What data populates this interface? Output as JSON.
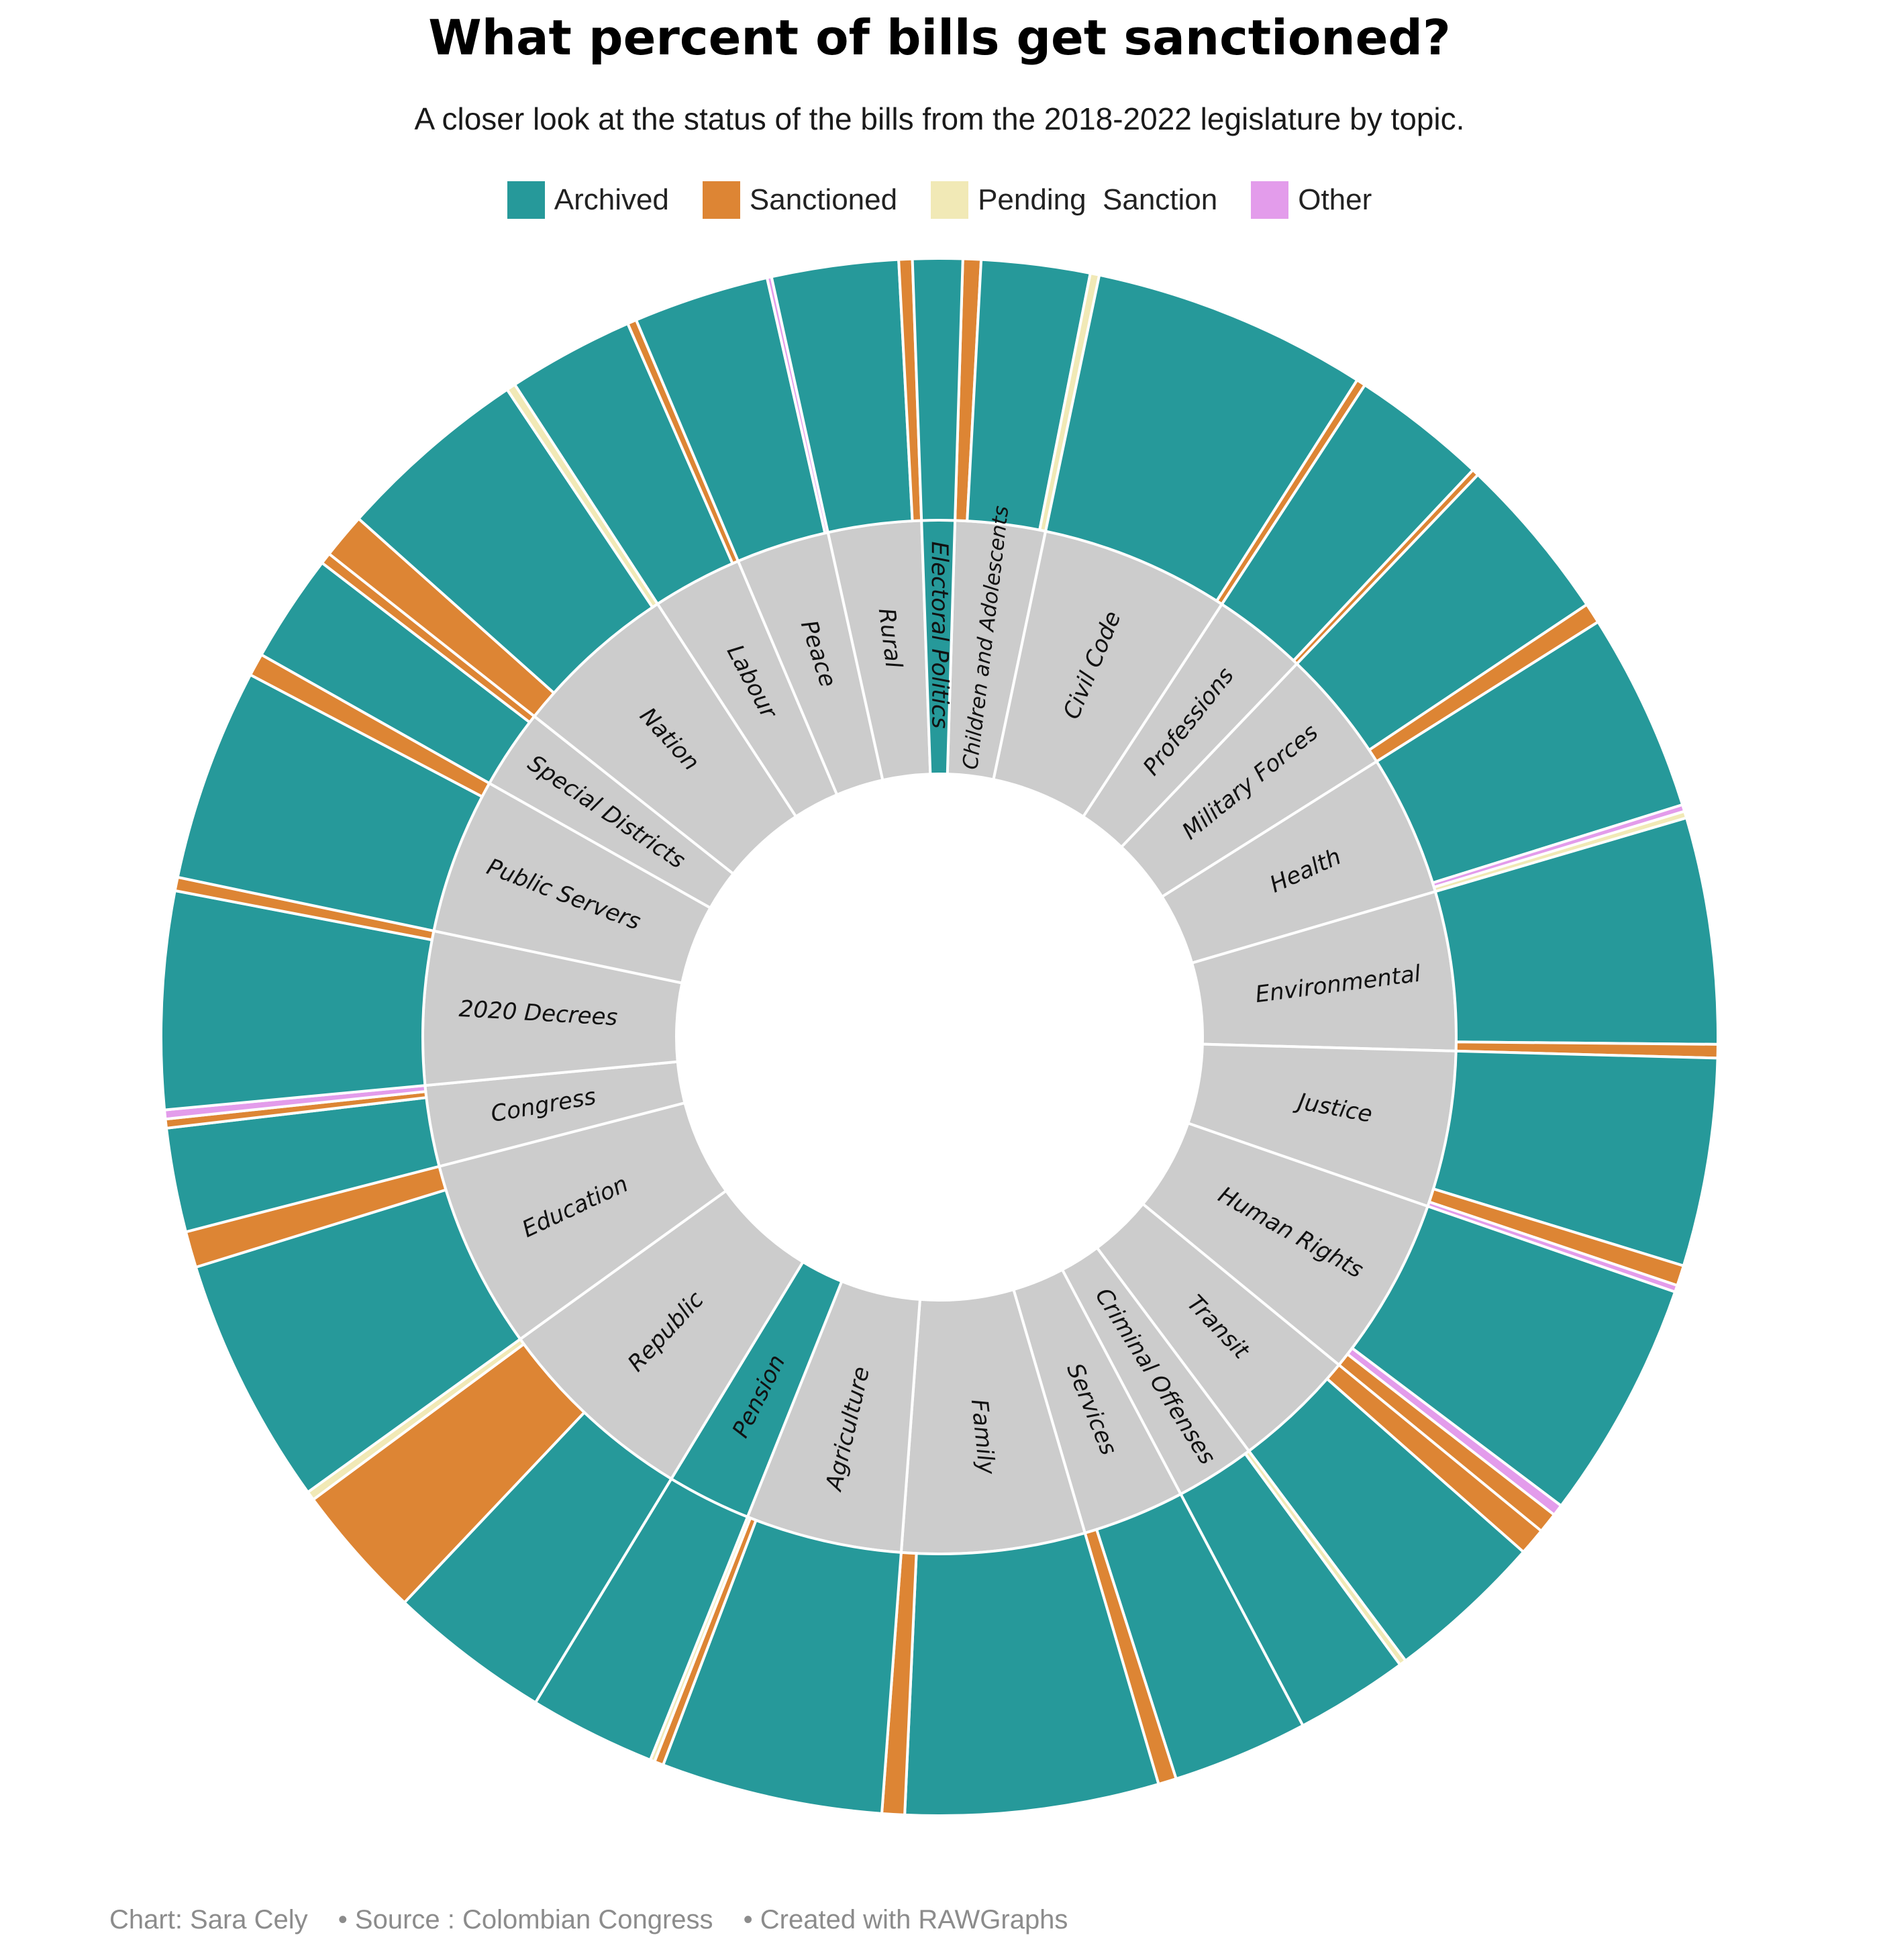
{
  "title": "What percent of bills get sanctioned?",
  "subtitle": "A closer look at the status of the bills from the 2018-2022 legislature by topic.",
  "legend": [
    {
      "label": "Archived",
      "color": "#26999a"
    },
    {
      "label": "Sanctioned",
      "color": "#dd8534"
    },
    {
      "label": "Pending  Sanction",
      "color": "#f1e9b6"
    },
    {
      "label": "Other",
      "color": "#e39ceb"
    }
  ],
  "footer": {
    "author": "Chart:  Sara Cely",
    "source": "• Source : Colombian Congress",
    "tool": "• Created with RAWGraphs"
  },
  "chart_data": {
    "type": "sunburst",
    "unit": "share of bills (%)",
    "status_colors": {
      "Archived": "#26999a",
      "Sanctioned": "#dd8534",
      "Pending Sanction": "#f1e9b6",
      "Other": "#e39ceb",
      "Topic": "#cccccc"
    },
    "topics": [
      {
        "name": "Children and Adolescents",
        "statuses": [
          {
            "status": "Sanctioned",
            "value": 0.4
          },
          {
            "status": "Archived",
            "value": 2.4
          },
          {
            "status": "Pending Sanction",
            "value": 0.2
          }
        ]
      },
      {
        "name": "Civil Code",
        "statuses": [
          {
            "status": "Archived",
            "value": 6.1
          },
          {
            "status": "Sanctioned",
            "value": 0.2
          }
        ]
      },
      {
        "name": "Professions",
        "statuses": [
          {
            "status": "Archived",
            "value": 3.0
          },
          {
            "status": "Sanctioned",
            "value": 0.15
          }
        ]
      },
      {
        "name": "Military Forces",
        "statuses": [
          {
            "status": "Archived",
            "value": 3.7
          },
          {
            "status": "Sanctioned",
            "value": 0.45
          }
        ]
      },
      {
        "name": "Health",
        "statuses": [
          {
            "status": "Archived",
            "value": 4.4
          },
          {
            "status": "Other",
            "value": 0.15
          },
          {
            "status": "Pending Sanction",
            "value": 0.15
          }
        ]
      },
      {
        "name": "Environmental",
        "statuses": [
          {
            "status": "Archived",
            "value": 5.0
          },
          {
            "status": "Sanctioned",
            "value": 0.3
          }
        ]
      },
      {
        "name": "Justice",
        "statuses": [
          {
            "status": "Archived",
            "value": 4.6
          },
          {
            "status": "Sanctioned",
            "value": 0.45
          },
          {
            "status": "Other",
            "value": 0.15
          }
        ]
      },
      {
        "name": "Human Rights",
        "statuses": [
          {
            "status": "Archived",
            "value": 5.3
          },
          {
            "status": "Other",
            "value": 0.25
          },
          {
            "status": "Sanctioned",
            "value": 0.45
          }
        ]
      },
      {
        "name": "Transit",
        "statuses": [
          {
            "status": "Sanctioned",
            "value": 0.6
          },
          {
            "status": "Archived",
            "value": 3.5
          }
        ]
      },
      {
        "name": "Criminal Offenses",
        "statuses": [
          {
            "status": "Pending Sanction",
            "value": 0.15
          },
          {
            "status": "Archived",
            "value": 2.5
          }
        ]
      },
      {
        "name": "Services",
        "statuses": [
          {
            "status": "Archived",
            "value": 3.0
          },
          {
            "status": "Sanctioned",
            "value": 0.4
          }
        ]
      },
      {
        "name": "Family",
        "statuses": [
          {
            "status": "Archived",
            "value": 5.6
          },
          {
            "status": "Sanctioned",
            "value": 0.5
          }
        ]
      },
      {
        "name": "Agriculture",
        "statuses": [
          {
            "status": "Archived",
            "value": 4.9
          },
          {
            "status": "Sanctioned",
            "value": 0.2
          },
          {
            "status": "Pending Sanction",
            "value": 0.1
          }
        ]
      },
      {
        "name": "Pension",
        "statuses": [
          {
            "status": "Archived",
            "value": 2.8
          }
        ]
      },
      {
        "name": "Republic",
        "statuses": [
          {
            "status": "Archived",
            "value": 3.6
          },
          {
            "status": "Sanctioned",
            "value": 3.0
          },
          {
            "status": "Pending Sanction",
            "value": 0.2
          }
        ]
      },
      {
        "name": "Education",
        "statuses": [
          {
            "status": "Archived",
            "value": 5.5
          },
          {
            "status": "Sanctioned",
            "value": 0.8
          }
        ]
      },
      {
        "name": "Congress",
        "statuses": [
          {
            "status": "Archived",
            "value": 2.3
          },
          {
            "status": "Sanctioned",
            "value": 0.2
          },
          {
            "status": "Other",
            "value": 0.2
          }
        ]
      },
      {
        "name": "2020 Decrees",
        "statuses": [
          {
            "status": "Archived",
            "value": 4.8
          },
          {
            "status": "Sanctioned",
            "value": 0.3
          }
        ]
      },
      {
        "name": "Public Servers",
        "statuses": [
          {
            "status": "Archived",
            "value": 4.7
          },
          {
            "status": "Sanctioned",
            "value": 0.5
          }
        ]
      },
      {
        "name": "Special Districts",
        "statuses": [
          {
            "status": "Archived",
            "value": 2.4
          },
          {
            "status": "Sanctioned",
            "value": 0.25
          }
        ]
      },
      {
        "name": "Nation",
        "statuses": [
          {
            "status": "Sanctioned",
            "value": 1.0
          },
          {
            "status": "Archived",
            "value": 4.3
          },
          {
            "status": "Pending Sanction",
            "value": 0.2
          }
        ]
      },
      {
        "name": "Labour",
        "statuses": [
          {
            "status": "Archived",
            "value": 2.8
          },
          {
            "status": "Sanctioned",
            "value": 0.2
          }
        ]
      },
      {
        "name": "Peace",
        "statuses": [
          {
            "status": "Archived",
            "value": 3.0
          },
          {
            "status": "Other",
            "value": 0.1
          }
        ]
      },
      {
        "name": "Rural",
        "statuses": [
          {
            "status": "Archived",
            "value": 2.8
          },
          {
            "status": "Sanctioned",
            "value": 0.3
          }
        ]
      },
      {
        "name": "Electoral Politics",
        "statuses": [
          {
            "status": "Archived",
            "value": 1.1
          }
        ]
      }
    ]
  }
}
